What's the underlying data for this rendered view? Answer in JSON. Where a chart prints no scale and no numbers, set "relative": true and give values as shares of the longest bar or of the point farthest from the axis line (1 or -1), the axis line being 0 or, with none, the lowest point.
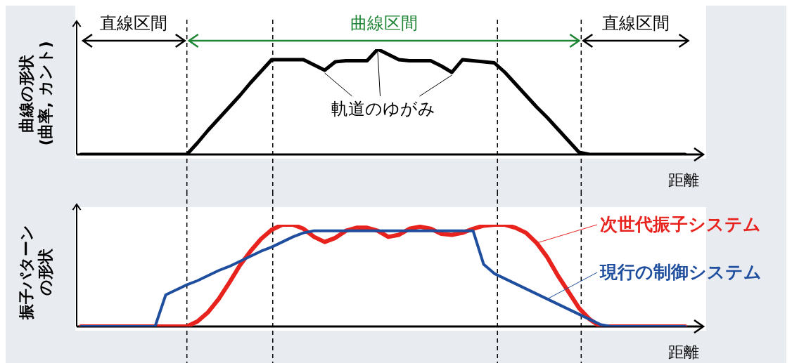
{
  "chart_data": [
    {
      "type": "line",
      "relative": true,
      "ylabel": "曲線の形状(曲率, カント)",
      "xlabel": "距離",
      "marker": "none",
      "grid": "x",
      "categories": [
        null,
        null,
        null,
        null,
        null,
        null,
        null,
        null,
        null,
        null,
        null,
        null,
        null,
        null,
        null,
        null,
        null,
        null,
        null,
        null,
        null,
        null,
        null,
        null,
        null,
        null,
        null,
        null,
        null,
        null,
        null,
        null,
        null,
        null,
        null,
        null,
        null,
        null,
        null,
        null,
        null,
        null,
        null,
        null,
        null,
        null,
        null,
        null,
        null,
        null,
        null,
        null,
        null,
        null,
        null,
        null,
        null,
        null
      ],
      "series": [
        {
          "color": "#000000",
          "values": [
            0,
            0,
            0,
            0,
            0,
            0,
            0,
            0,
            0,
            0,
            0,
            0.11,
            0.23,
            0.34,
            0.45,
            0.56,
            0.68,
            0.79,
            0.9,
            0.9,
            0.9,
            0.9,
            0.85,
            0.8,
            0.88,
            0.89,
            0.89,
            0.89,
            1,
            0.95,
            0.9,
            0.89,
            0.89,
            0.89,
            0.84,
            0.78,
            0.9,
            0.89,
            0.88,
            0.87,
            0.78,
            0.67,
            0.56,
            0.45,
            0.35,
            0.24,
            0.13,
            0.02,
            0,
            0,
            0,
            0,
            0,
            0,
            0,
            0,
            0,
            0
          ]
        }
      ],
      "annotations": [
        "直線区間",
        "曲線区間",
        "直線区間",
        "軌道のゆがみ"
      ]
    },
    {
      "type": "line",
      "relative": true,
      "ylabel": "振子パターンの形状",
      "xlabel": "距離",
      "marker": "none",
      "grid": "x",
      "categories": [
        null,
        null,
        null,
        null,
        null,
        null,
        null,
        null,
        null,
        null,
        null,
        null,
        null,
        null,
        null,
        null,
        null,
        null,
        null,
        null,
        null,
        null,
        null,
        null,
        null,
        null,
        null,
        null,
        null,
        null,
        null,
        null,
        null,
        null,
        null,
        null,
        null,
        null,
        null,
        null,
        null,
        null,
        null,
        null,
        null,
        null,
        null,
        null,
        null,
        null,
        null,
        null,
        null,
        null,
        null,
        null,
        null,
        null
      ],
      "series": [
        {
          "name": "現行の制御システム",
          "color": "#1f4e9e",
          "values": [
            0,
            0,
            0,
            0,
            0,
            0,
            0,
            0,
            0.31,
            0.36,
            0.41,
            0.45,
            0.5,
            0.55,
            0.59,
            0.64,
            0.69,
            0.74,
            0.78,
            0.83,
            0.88,
            0.92,
            0.94,
            0.94,
            0.94,
            0.94,
            0.94,
            0.94,
            0.94,
            0.94,
            0.94,
            0.94,
            0.94,
            0.94,
            0.94,
            0.94,
            0.94,
            0.94,
            0.61,
            0.52,
            0.47,
            0.42,
            0.37,
            0.32,
            0.27,
            0.22,
            0.17,
            0.12,
            0.07,
            0.02,
            0,
            0,
            0,
            0,
            0,
            0,
            0,
            0
          ]
        },
        {
          "name": "次世代振子システム",
          "color": "#e8231e",
          "values": [
            0,
            0,
            0,
            0,
            0,
            0,
            0,
            0,
            0,
            0,
            0,
            0.05,
            0.14,
            0.27,
            0.43,
            0.6,
            0.74,
            0.86,
            0.95,
            1,
            1,
            0.96,
            0.88,
            0.83,
            0.87,
            0.94,
            0.97,
            0.97,
            0.94,
            0.88,
            0.9,
            0.96,
            0.98,
            0.96,
            0.91,
            0.9,
            0.92,
            0.96,
            0.99,
            1,
            1,
            0.97,
            0.92,
            0.82,
            0.68,
            0.5,
            0.34,
            0.18,
            0.07,
            0,
            0,
            0,
            0,
            0,
            0,
            0,
            0,
            0
          ]
        }
      ]
    }
  ]
}
